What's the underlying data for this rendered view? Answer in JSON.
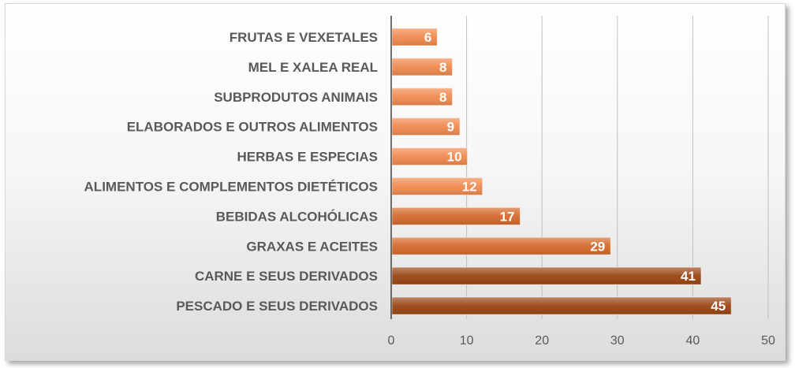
{
  "chart_data": {
    "type": "bar",
    "orientation": "horizontal",
    "categories": [
      "FRUTAS E VEXETALES",
      "MEL E XALEA REAL",
      "SUBPRODUTOS ANIMAIS",
      "ELABORADOS E OUTROS ALIMENTOS",
      "HERBAS E ESPECIAS",
      "ALIMENTOS E COMPLEMENTOS DIETÉTICOS",
      "BEBIDAS ALCOHÓLICAS",
      "GRAXAS E ACEITES",
      "CARNE E SEUS DERIVADOS",
      "PESCADO E SEUS DERIVADOS"
    ],
    "values": [
      6,
      8,
      8,
      9,
      10,
      12,
      17,
      29,
      41,
      45
    ],
    "xlim": [
      0,
      50
    ],
    "xticks": [
      0,
      10,
      20,
      30,
      40,
      50
    ],
    "grid": "vertical",
    "legend": "none",
    "colors": {
      "low": "#f0894e",
      "mid": "#d4692a",
      "high": "#9a4513",
      "grid": "#bfbfbf",
      "axis": "#404040"
    }
  }
}
